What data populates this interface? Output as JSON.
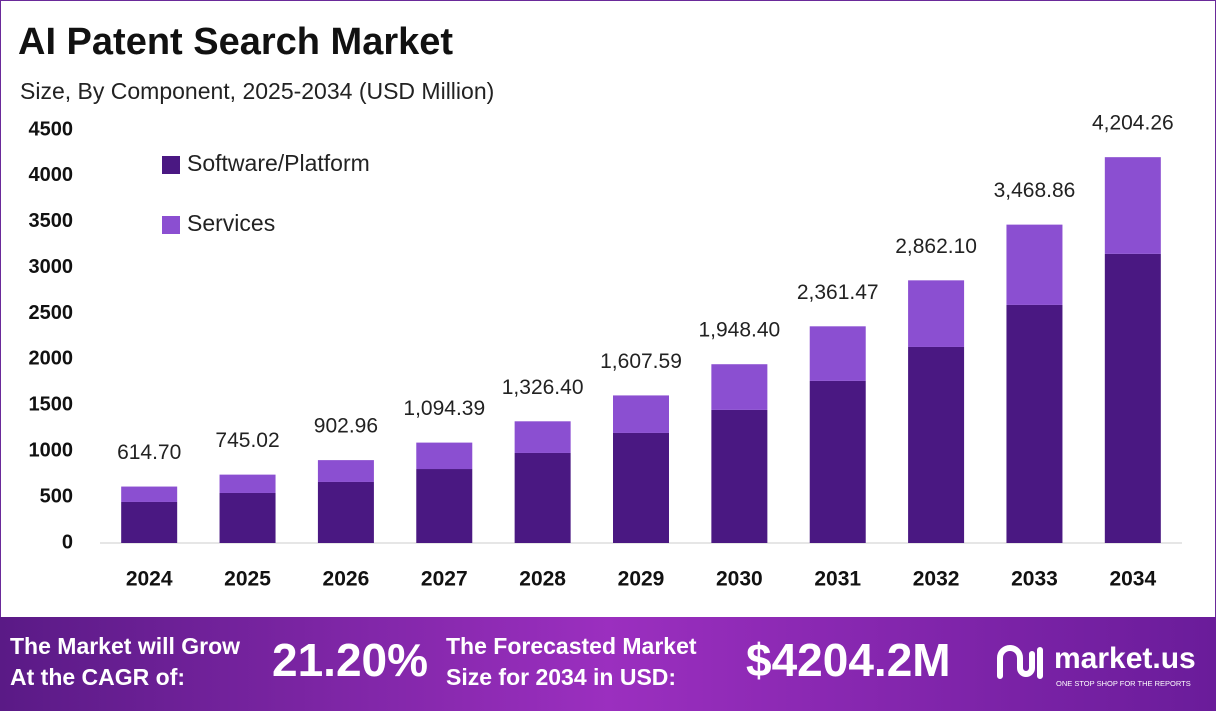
{
  "chart_data": {
    "type": "stacked_bar",
    "title": "AI Patent Search Market",
    "subtitle": "Size, By Component, 2025-2034 (USD Million)",
    "categories": [
      "2024",
      "2025",
      "2026",
      "2027",
      "2028",
      "2029",
      "2030",
      "2031",
      "2032",
      "2033",
      "2034"
    ],
    "series": [
      {
        "name": "Software/Platform",
        "color": "#4a1882",
        "values": [
          447,
          545,
          665,
          806,
          981,
          1199,
          1450,
          1766,
          2136,
          2594,
          3150
        ]
      },
      {
        "name": "Services",
        "color": "#8b4fd1",
        "values": [
          168,
          200,
          238,
          288,
          345,
          409,
          498,
          595,
          726,
          875,
          1054
        ]
      }
    ],
    "totals": {
      "values": [
        614.7,
        745.02,
        902.96,
        1094.39,
        1326.4,
        1607.59,
        1948.4,
        2361.47,
        2862.1,
        3468.86,
        4204.26
      ],
      "value_labels": [
        "614.70",
        "745.02",
        "902.96",
        "1,094.39",
        "1,326.40",
        "1,607.59",
        "1,948.40",
        "2,361.47",
        "2,862.10",
        "3,468.86",
        "4,204.26"
      ]
    },
    "ylim": [
      0,
      4500
    ],
    "yticks": [
      0,
      500,
      1000,
      1500,
      2000,
      2500,
      3000,
      3500,
      4000,
      4500
    ],
    "grid": false,
    "legend": "top-left"
  },
  "footer": {
    "cagr_text": [
      "The Market will Grow",
      "At the CAGR of:"
    ],
    "cagr_value": "21.20%",
    "forecast_text": [
      "The Forecasted Market",
      "Size for 2034 in USD:"
    ],
    "forecast_value": "$4204.2M",
    "brand": "market.us",
    "tagline": "ONE STOP SHOP FOR THE REPORTS"
  }
}
